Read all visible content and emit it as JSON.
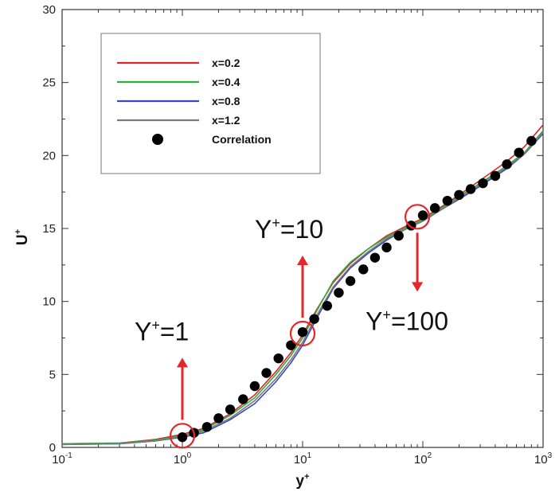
{
  "chart_data": {
    "type": "line",
    "x_scale": "log",
    "xlabel": "y",
    "xlabel_superscript": "+",
    "ylabel": "U",
    "ylabel_superscript": "+",
    "xlim": [
      0.1,
      1000
    ],
    "ylim": [
      0,
      30
    ],
    "x_ticks": [
      {
        "value": 0.1,
        "base": "10",
        "exp": "-1"
      },
      {
        "value": 1,
        "base": "10",
        "exp": "0"
      },
      {
        "value": 10,
        "base": "10",
        "exp": "1"
      },
      {
        "value": 100,
        "base": "10",
        "exp": "2"
      },
      {
        "value": 1000,
        "base": "10",
        "exp": "3"
      }
    ],
    "y_ticks": [
      "0",
      "5",
      "10",
      "15",
      "20",
      "25",
      "30"
    ],
    "legend_position": "top-left",
    "series": [
      {
        "name": "x=0.2",
        "color": "#d9262a",
        "kind": "line",
        "x": [
          0.1,
          0.3,
          0.6,
          1.0,
          1.5,
          2.5,
          4,
          6,
          8,
          10,
          13,
          18,
          25,
          35,
          50,
          70,
          100,
          150,
          200,
          300,
          500,
          700,
          1000
        ],
        "y": [
          0.25,
          0.3,
          0.55,
          0.9,
          1.3,
          2.3,
          3.6,
          5.2,
          6.5,
          7.7,
          9.4,
          11.3,
          12.6,
          13.6,
          14.5,
          15.1,
          15.7,
          16.6,
          17.3,
          18.3,
          19.6,
          20.6,
          22.1
        ]
      },
      {
        "name": "x=0.4",
        "color": "#2fae3c",
        "kind": "line",
        "x": [
          0.1,
          0.3,
          0.6,
          1.0,
          1.5,
          2.5,
          4,
          6,
          8,
          10,
          13,
          18,
          25,
          35,
          50,
          70,
          100,
          150,
          200,
          300,
          500,
          700,
          1000
        ],
        "y": [
          0.25,
          0.3,
          0.5,
          0.8,
          1.2,
          2.2,
          3.4,
          5.0,
          6.3,
          7.5,
          9.3,
          11.4,
          12.7,
          13.6,
          14.4,
          15.0,
          15.6,
          16.5,
          17.2,
          18.1,
          19.3,
          20.2,
          21.7
        ]
      },
      {
        "name": "x=0.8",
        "color": "#3b47c9",
        "kind": "line",
        "x": [
          0.1,
          0.3,
          0.6,
          1.0,
          1.5,
          2.5,
          4,
          6,
          8,
          10,
          13,
          18,
          25,
          35,
          50,
          70,
          100,
          150,
          200,
          300,
          500,
          700,
          1000
        ],
        "y": [
          0.2,
          0.25,
          0.45,
          0.7,
          1.0,
          1.9,
          3.0,
          4.5,
          5.8,
          7.0,
          8.8,
          10.9,
          12.3,
          13.3,
          14.2,
          14.9,
          15.5,
          16.4,
          17.0,
          17.9,
          19.1,
          20.1,
          21.5
        ]
      },
      {
        "name": "x=1.2",
        "color": "#7a7a7a",
        "kind": "line",
        "x": [
          0.1,
          0.3,
          0.6,
          1.0,
          1.5,
          2.5,
          4,
          6,
          8,
          10,
          13,
          18,
          25,
          35,
          50,
          70,
          100,
          150,
          200,
          300,
          500,
          700,
          1000
        ],
        "y": [
          0.2,
          0.25,
          0.45,
          0.75,
          1.1,
          2.0,
          3.2,
          4.7,
          6.0,
          7.2,
          9.0,
          11.0,
          12.4,
          13.4,
          14.3,
          14.9,
          15.5,
          16.4,
          17.1,
          18.0,
          19.2,
          20.1,
          21.6
        ]
      },
      {
        "name": "Correlation",
        "color": "#000000",
        "kind": "scatter",
        "x": [
          1.0,
          1.25,
          1.6,
          2.0,
          2.5,
          3.2,
          4.0,
          5.0,
          6.3,
          8.0,
          10,
          12.5,
          16,
          20,
          25,
          32,
          40,
          50,
          63,
          80,
          100,
          126,
          160,
          200,
          250,
          316,
          400,
          500,
          630,
          800
        ],
        "y": [
          0.7,
          1.0,
          1.4,
          2.0,
          2.6,
          3.3,
          4.2,
          5.1,
          6.1,
          7.0,
          7.9,
          8.8,
          9.7,
          10.6,
          11.4,
          12.2,
          13.0,
          13.7,
          14.5,
          15.2,
          15.9,
          16.4,
          16.9,
          17.3,
          17.7,
          18.1,
          18.6,
          19.4,
          20.2,
          21.0
        ]
      }
    ],
    "annotations": [
      {
        "label_base": "Y",
        "label_sup": "+",
        "label_value": "=1",
        "x": 1,
        "y": 0.8,
        "arrow": "up"
      },
      {
        "label_base": "Y",
        "label_sup": "+",
        "label_value": "=10",
        "x": 10,
        "y": 7.8,
        "arrow": "up"
      },
      {
        "label_base": "Y",
        "label_sup": "+",
        "label_value": "=100",
        "x": 90,
        "y": 15.8,
        "arrow": "down"
      }
    ],
    "annotation_color": "#e5262b"
  }
}
